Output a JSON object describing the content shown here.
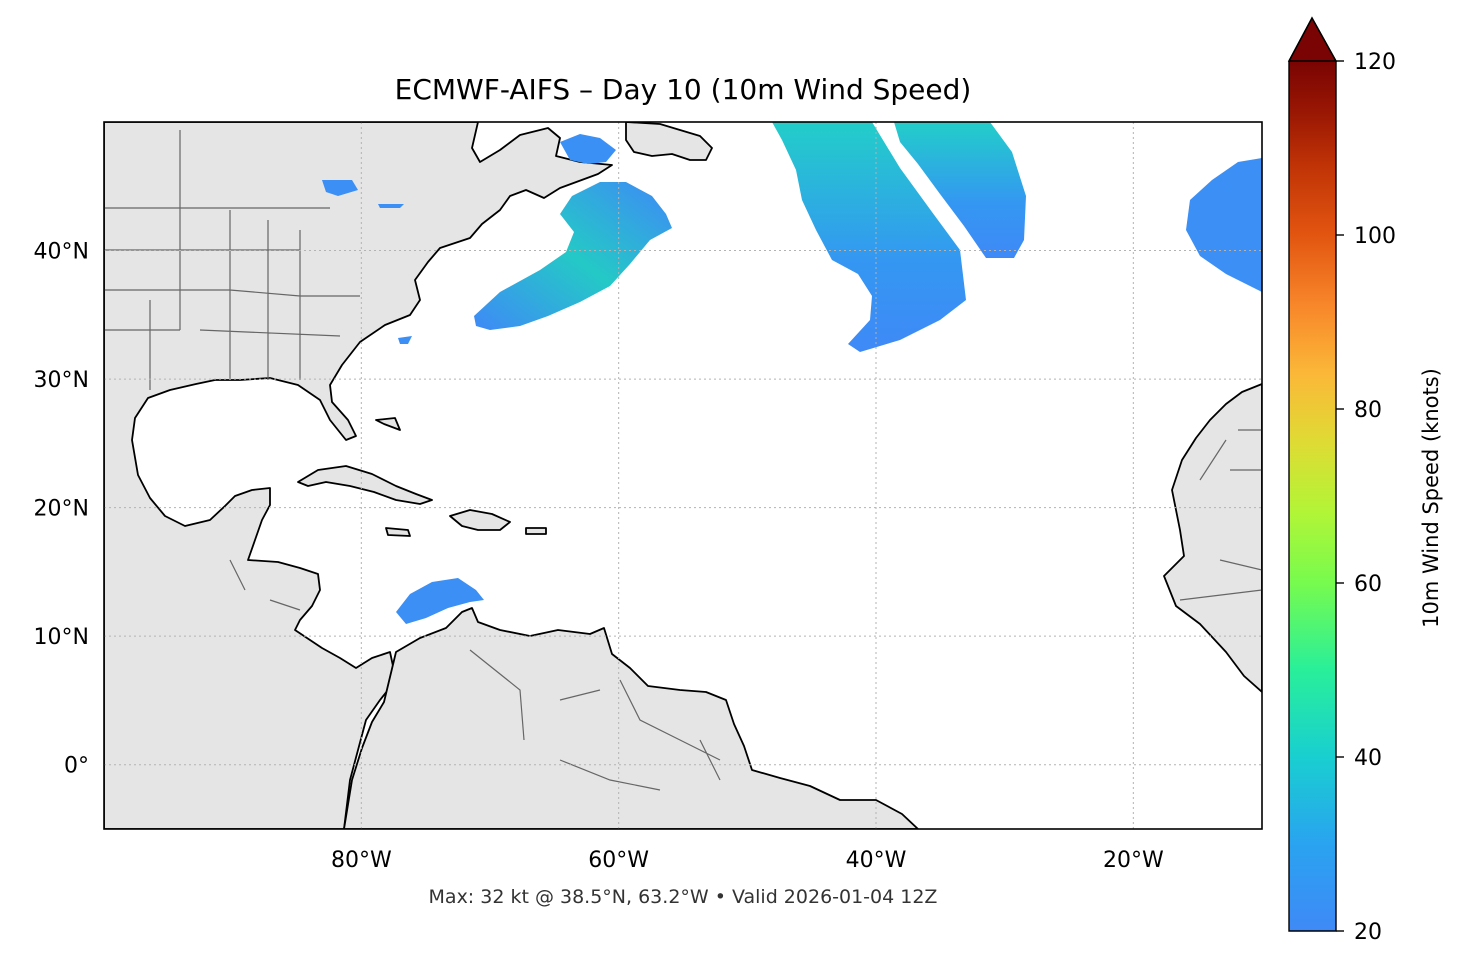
{
  "title": "ECMWF-AIFS – Day 10 (10m Wind Speed)",
  "footer": "Max: 32 kt @ 38.5°N, 63.2°W • Valid 2026-01-04 12Z",
  "map": {
    "lon_range": [
      -100,
      -10
    ],
    "lat_range": [
      -5,
      50
    ],
    "x_ticks": [
      {
        "lon": -80,
        "label": "80°W"
      },
      {
        "lon": -60,
        "label": "60°W"
      },
      {
        "lon": -40,
        "label": "40°W"
      },
      {
        "lon": -20,
        "label": "20°W"
      }
    ],
    "y_ticks": [
      {
        "lat": 40,
        "label": "40°N"
      },
      {
        "lat": 30,
        "label": "30°N"
      },
      {
        "lat": 20,
        "label": "20°N"
      },
      {
        "lat": 10,
        "label": "10°N"
      },
      {
        "lat": 0,
        "label": "0°"
      }
    ],
    "gridlines": true,
    "land_color": "#e5e5e5",
    "coast_color": "#000000",
    "border_color": "#666666"
  },
  "colorbar": {
    "label": "10m Wind Speed (knots)",
    "min": 20,
    "max": 120,
    "ticks": [
      {
        "value": 20,
        "label": "20"
      },
      {
        "value": 40,
        "label": "40"
      },
      {
        "value": 60,
        "label": "60"
      },
      {
        "value": 80,
        "label": "80"
      },
      {
        "value": 100,
        "label": "100"
      },
      {
        "value": 120,
        "label": "120"
      }
    ],
    "extend": "max",
    "colormap": "turbo"
  }
}
